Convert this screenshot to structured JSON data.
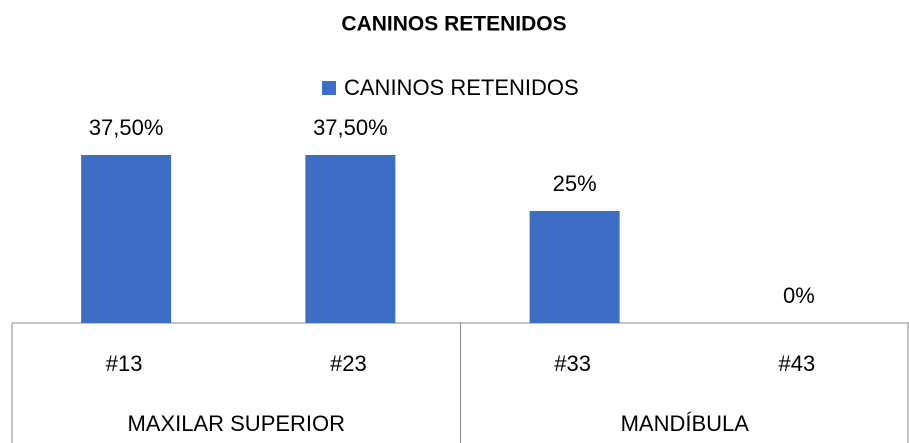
{
  "chart_data": {
    "type": "bar",
    "title": "CANINOS RETENIDOS",
    "categories": [
      "#13",
      "#23",
      "#33",
      "#43"
    ],
    "category_groups": [
      "MAXILAR SUPERIOR",
      "MAXILAR SUPERIOR",
      "MANDÍBULA",
      "MANDÍBULA"
    ],
    "series": [
      {
        "name": "CANINOS RETENIDOS",
        "color": "#3d6dc4",
        "values": [
          37.5,
          37.5,
          25,
          0
        ],
        "value_labels": [
          "37,50%",
          "37,50%",
          "25%",
          "0%"
        ]
      }
    ]
  }
}
